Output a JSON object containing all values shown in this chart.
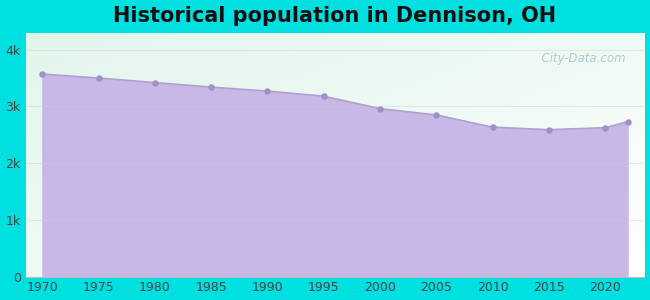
{
  "title": "Historical population in Dennison, OH",
  "years": [
    1970,
    1975,
    1980,
    1985,
    1990,
    1995,
    2000,
    2005,
    2010,
    2015,
    2020,
    2022
  ],
  "population": [
    3570,
    3500,
    3420,
    3340,
    3270,
    3180,
    2960,
    2850,
    2634,
    2590,
    2625,
    2730
  ],
  "background_outer": "#00e0e0",
  "fill_color": "#c8b8e8",
  "line_color": "#b0a0d0",
  "dot_color": "#a090c8",
  "ytick_labels": [
    "0",
    "1k",
    "2k",
    "3k",
    "4k"
  ],
  "ytick_values": [
    0,
    1000,
    2000,
    3000,
    4000
  ],
  "ylim": [
    0,
    4300
  ],
  "xlim": [
    1968.5,
    2023.5
  ],
  "xtick_values": [
    1970,
    1975,
    1980,
    1985,
    1990,
    1995,
    2000,
    2005,
    2010,
    2015,
    2020
  ],
  "title_fontsize": 15,
  "tick_fontsize": 9,
  "watermark": "  City-Data.com"
}
